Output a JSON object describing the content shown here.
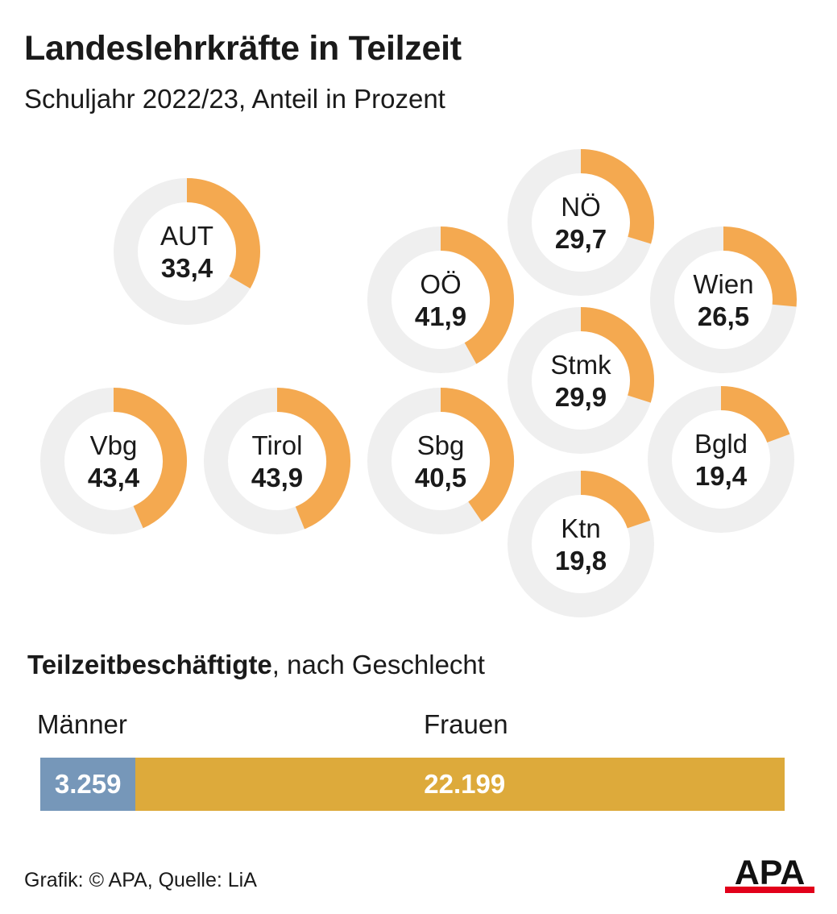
{
  "title": "Landeslehrkräfte in Teilzeit",
  "subtitle": "Schuljahr 2022/23, Anteil in Prozent",
  "colors": {
    "donut_fill": "#f4a950",
    "donut_track": "#efefef",
    "men": "#7697b9",
    "women": "#ddaa3b"
  },
  "chart_data": [
    {
      "type": "pie",
      "subtype": "donut",
      "title": "Landeslehrkräfte in Teilzeit",
      "subtitle": "Schuljahr 2022/23, Anteil in Prozent",
      "unit": "%",
      "max": 100,
      "items": [
        {
          "label": "AUT",
          "value": 33.4,
          "display": "33,4"
        },
        {
          "label": "NÖ",
          "value": 29.7,
          "display": "29,7"
        },
        {
          "label": "OÖ",
          "value": 41.9,
          "display": "41,9"
        },
        {
          "label": "Wien",
          "value": 26.5,
          "display": "26,5"
        },
        {
          "label": "Stmk",
          "value": 29.9,
          "display": "29,9"
        },
        {
          "label": "Vbg",
          "value": 43.4,
          "display": "43,4"
        },
        {
          "label": "Tirol",
          "value": 43.9,
          "display": "43,9"
        },
        {
          "label": "Sbg",
          "value": 40.5,
          "display": "40,5"
        },
        {
          "label": "Bgld",
          "value": 19.4,
          "display": "19,4"
        },
        {
          "label": "Ktn",
          "value": 19.8,
          "display": "19,8"
        }
      ]
    },
    {
      "type": "bar",
      "subtype": "stacked-horizontal",
      "title_bold": "Teilzeitbeschäftigte",
      "title_rest": ", nach Geschlecht",
      "categories": [
        "Männer",
        "Frauen"
      ],
      "values": [
        3259,
        22199
      ],
      "display": [
        "3.259",
        "22.199"
      ]
    }
  ],
  "footer": "Grafik: © APA, Quelle: LiA",
  "logo_text": "APA"
}
